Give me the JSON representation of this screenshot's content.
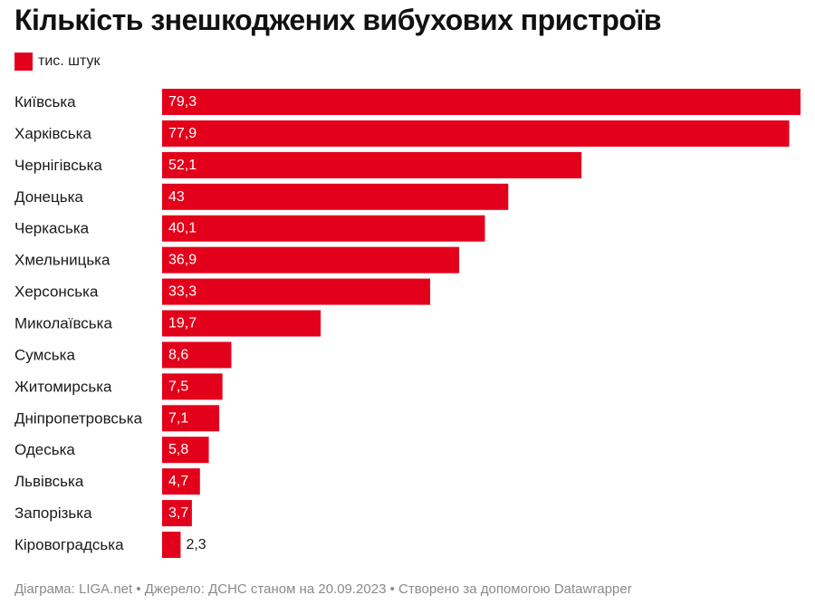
{
  "chart_data": {
    "type": "bar",
    "orientation": "horizontal",
    "title": "Кількість знешкоджених вибухових пристроїв",
    "legend": "тис. штук",
    "color": "#e3001b",
    "categories": [
      "Київська",
      "Харківська",
      "Чернігівська",
      "Донецька",
      "Черкаська",
      "Хмельницька",
      "Херсонська",
      "Миколаївська",
      "Сумська",
      "Житомирська",
      "Дніпропетровська",
      "Одеська",
      "Львівська",
      "Запорізька",
      "Кіровоградська"
    ],
    "values": [
      79.3,
      77.9,
      52.1,
      43,
      40.1,
      36.9,
      33.3,
      19.7,
      8.6,
      7.5,
      7.1,
      5.8,
      4.7,
      3.7,
      2.3
    ],
    "value_labels": [
      "79,3",
      "77,9",
      "52,1",
      "43",
      "40,1",
      "36,9",
      "33,3",
      "19,7",
      "8,6",
      "7,5",
      "7,1",
      "5,8",
      "4,7",
      "3,7",
      "2,3"
    ]
  },
  "footer": "Діаграма: LIGA.net • Джерело: ДСНС станом на 20.09.2023 • Створено за допомогою Datawrapper"
}
